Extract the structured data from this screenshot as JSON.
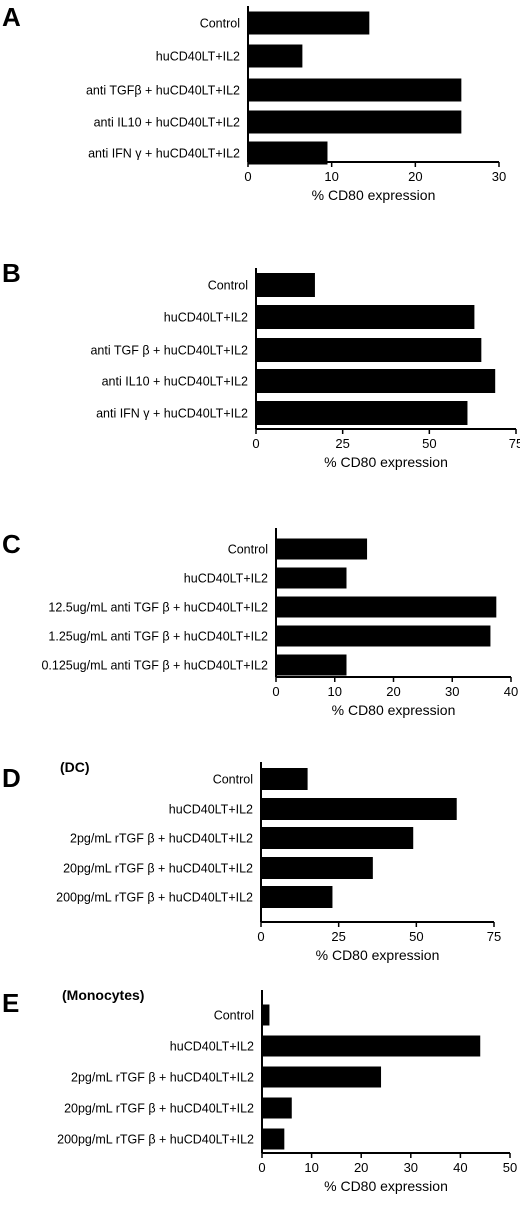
{
  "chart_data": [
    {
      "type": "bar",
      "orientation": "horizontal",
      "panel": "A",
      "subtitle": "",
      "categories": [
        "Control",
        "huCD40LT+IL2",
        "anti TGFβ + huCD40LT+IL2",
        "anti IL10 + huCD40LT+IL2",
        "anti IFN γ + huCD40LT+IL2"
      ],
      "values": [
        14.5,
        6.5,
        25.5,
        25.5,
        9.5
      ],
      "xlabel": "% CD80 expression",
      "xlim": [
        0,
        30
      ],
      "xticks": [
        0,
        10,
        20,
        30
      ]
    },
    {
      "type": "bar",
      "orientation": "horizontal",
      "panel": "B",
      "subtitle": "",
      "categories": [
        "Control",
        "huCD40LT+IL2",
        "anti TGF β + huCD40LT+IL2",
        "anti IL10 + huCD40LT+IL2",
        "anti IFN γ + huCD40LT+IL2"
      ],
      "values": [
        17,
        63,
        65,
        69,
        61
      ],
      "xlabel": "% CD80 expression",
      "xlim": [
        0,
        75
      ],
      "xticks": [
        0,
        25,
        50,
        75
      ]
    },
    {
      "type": "bar",
      "orientation": "horizontal",
      "panel": "C",
      "subtitle": "",
      "categories": [
        "Control",
        "huCD40LT+IL2",
        "12.5ug/mL anti TGF β + huCD40LT+IL2",
        "1.25ug/mL anti TGF β + huCD40LT+IL2",
        "0.125ug/mL anti TGF β + huCD40LT+IL2"
      ],
      "values": [
        15.5,
        12,
        37.5,
        36.5,
        12
      ],
      "xlabel": "% CD80 expression",
      "xlim": [
        0,
        40
      ],
      "xticks": [
        0,
        10,
        20,
        30,
        40
      ]
    },
    {
      "type": "bar",
      "orientation": "horizontal",
      "panel": "D",
      "subtitle": "(DC)",
      "categories": [
        "Control",
        "huCD40LT+IL2",
        "2pg/mL rTGF β + huCD40LT+IL2",
        "20pg/mL rTGF β + huCD40LT+IL2",
        "200pg/mL rTGF β + huCD40LT+IL2"
      ],
      "values": [
        15,
        63,
        49,
        36,
        23
      ],
      "xlabel": "% CD80 expression",
      "xlim": [
        0,
        75
      ],
      "xticks": [
        0,
        25,
        50,
        75
      ]
    },
    {
      "type": "bar",
      "orientation": "horizontal",
      "panel": "E",
      "subtitle": "(Monocytes)",
      "categories": [
        "Control",
        "huCD40LT+IL2",
        "2pg/mL rTGF β + huCD40LT+IL2",
        "20pg/mL rTGF β + huCD40LT+IL2",
        "200pg/mL rTGF β + huCD40LT+IL2"
      ],
      "values": [
        1.5,
        44,
        24,
        6,
        4.5
      ],
      "xlabel": "% CD80 expression",
      "xlim": [
        0,
        50
      ],
      "xticks": [
        0,
        10,
        20,
        30,
        40,
        50
      ]
    }
  ]
}
